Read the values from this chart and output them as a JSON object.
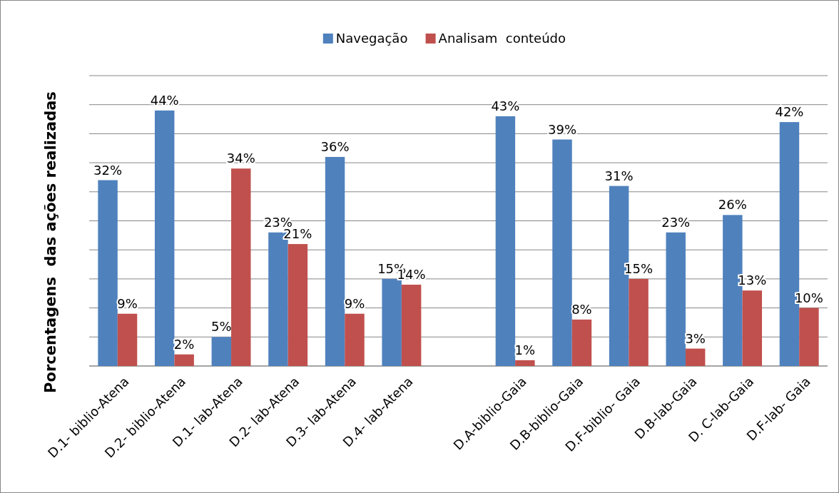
{
  "chart_data": {
    "type": "bar",
    "ylabel": "Porcentagens  das ações realizadas",
    "categories": [
      "D.1- biblio-Atena",
      "D.2- biblio-Atena",
      "D.1- lab-Atena",
      "D.2- lab-Atena",
      "D.3- lab-Atena",
      "D.4- lab-Atena",
      null,
      "D.A-biblio-Gaia",
      "D.B-biblio-Gaia",
      "D.F-biblio- Gaia",
      "D.B-lab-Gaia",
      "D. C-lab-Gaia",
      "D.F-lab- Gaia"
    ],
    "series": [
      {
        "name": "Navegação",
        "color": "#4f81bd",
        "values": [
          32,
          44,
          5,
          23,
          36,
          15,
          null,
          43,
          39,
          31,
          23,
          26,
          42
        ],
        "value_labels": [
          "32%",
          "44%",
          "5%",
          "23%",
          "36%",
          "15%",
          null,
          "43%",
          "39%",
          "31%",
          "23%",
          "26%",
          "42%"
        ]
      },
      {
        "name": "Analisam  conteúdo",
        "color": "#c0504d",
        "values": [
          9,
          2,
          34,
          21,
          9,
          14,
          null,
          1,
          8,
          15,
          3,
          13,
          10
        ],
        "value_labels": [
          "9%",
          "2%",
          "34%",
          "21%",
          "9%",
          "14%",
          null,
          "1%",
          "8%",
          "15%",
          "3%",
          "13%",
          "10%"
        ]
      }
    ],
    "ylim": [
      0,
      50
    ],
    "yticks": [
      {
        "value": 0,
        "label": null
      },
      {
        "value": 5,
        "label": null
      },
      {
        "value": 10,
        "label": null
      },
      {
        "value": 15,
        "label": null
      },
      {
        "value": 20,
        "label": null
      },
      {
        "value": 25,
        "label": null
      },
      {
        "value": 30,
        "label": null
      },
      {
        "value": 35,
        "label": null
      },
      {
        "value": 40,
        "label": null
      },
      {
        "value": 45,
        "label": null
      },
      {
        "value": 50,
        "label": null
      }
    ],
    "grid": "y",
    "legend": "top",
    "tick_labels": "x"
  }
}
